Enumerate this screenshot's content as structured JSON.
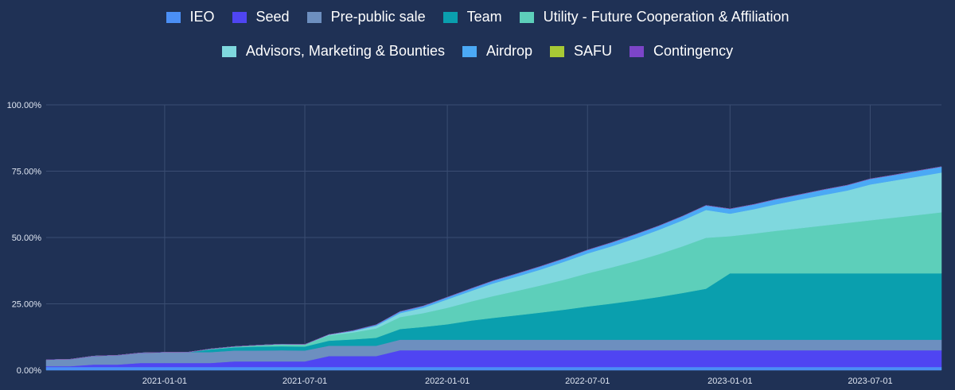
{
  "chart_data": {
    "type": "area",
    "stacked": true,
    "title": "",
    "xlabel": "",
    "ylabel": "",
    "ylim": [
      0,
      100
    ],
    "x_ticks": [
      "2021-01-01",
      "2021-07-01",
      "2022-01-01",
      "2022-07-01",
      "2023-01-01",
      "2023-07-01"
    ],
    "y_ticks": [
      "0.00%",
      "25.00%",
      "50.00%",
      "75.00%",
      "100.00%"
    ],
    "legend_position": "top",
    "x": [
      "2020-08-01",
      "2020-09-01",
      "2020-10-01",
      "2020-11-01",
      "2020-12-01",
      "2021-01-01",
      "2021-02-01",
      "2021-03-01",
      "2021-04-01",
      "2021-05-01",
      "2021-06-01",
      "2021-07-01",
      "2021-08-01",
      "2021-09-01",
      "2021-10-01",
      "2021-11-01",
      "2021-12-01",
      "2022-01-01",
      "2022-02-01",
      "2022-03-01",
      "2022-04-01",
      "2022-05-01",
      "2022-06-01",
      "2022-07-01",
      "2022-08-01",
      "2022-09-01",
      "2022-10-01",
      "2022-11-01",
      "2022-12-01",
      "2023-01-01",
      "2023-02-01",
      "2023-03-01",
      "2023-04-01",
      "2023-05-01",
      "2023-06-01",
      "2023-07-01",
      "2023-08-01",
      "2023-09-01",
      "2023-10-01"
    ],
    "series": [
      {
        "name": "IEO",
        "color": "#4b8ff5",
        "values": [
          1.2,
          1.2,
          1.2,
          1.2,
          1.2,
          1.2,
          1.2,
          1.2,
          1.2,
          1.2,
          1.2,
          1.2,
          1.2,
          1.2,
          1.2,
          1.2,
          1.2,
          1.2,
          1.2,
          1.2,
          1.2,
          1.2,
          1.2,
          1.2,
          1.2,
          1.2,
          1.2,
          1.2,
          1.2,
          1.2,
          1.2,
          1.2,
          1.2,
          1.2,
          1.2,
          1.2,
          1.2,
          1.2,
          1.2
        ]
      },
      {
        "name": "Seed",
        "color": "#4f45f2",
        "values": [
          0.3,
          0.3,
          0.9,
          0.9,
          1.5,
          1.5,
          1.5,
          1.5,
          2.1,
          2.1,
          2.1,
          2.1,
          4.1,
          4.1,
          4.1,
          6.3,
          6.3,
          6.3,
          6.3,
          6.3,
          6.3,
          6.3,
          6.3,
          6.3,
          6.3,
          6.3,
          6.3,
          6.3,
          6.3,
          6.3,
          6.3,
          6.3,
          6.3,
          6.3,
          6.3,
          6.3,
          6.3,
          6.3,
          6.3
        ]
      },
      {
        "name": "Pre-public sale",
        "color": "#6d8fbf",
        "values": [
          2.4,
          2.6,
          3.2,
          3.5,
          3.8,
          4.0,
          4.1,
          4.1,
          4.1,
          4.1,
          4.2,
          4.1,
          3.9,
          3.9,
          3.9,
          4.0,
          4.0,
          4.0,
          4.0,
          4.0,
          4.0,
          4.0,
          4.0,
          4.0,
          4.0,
          4.0,
          4.0,
          4.0,
          4.0,
          4.0,
          4.0,
          4.0,
          4.0,
          4.0,
          4.0,
          4.0,
          4.0,
          4.0,
          4.0
        ]
      },
      {
        "name": "Team",
        "color": "#0a9fae",
        "values": [
          0,
          0,
          0,
          0,
          0,
          0,
          0,
          1.0,
          1.2,
          1.5,
          1.5,
          1.5,
          1.9,
          2.4,
          3.0,
          4.0,
          4.8,
          5.8,
          7.2,
          8.2,
          9.2,
          10.2,
          11.3,
          12.5,
          13.6,
          14.8,
          16.1,
          17.6,
          19.2,
          25.0,
          25.0,
          25.0,
          25.0,
          25.0,
          25.0,
          25.0,
          25.0,
          25.0,
          25.0
        ]
      },
      {
        "name": "Utility - Future Cooperation & Affiliation",
        "color": "#5dcfba",
        "values": [
          0,
          0,
          0,
          0,
          0,
          0,
          0,
          0.2,
          0.3,
          0.5,
          0.8,
          0.8,
          2.0,
          2.6,
          3.5,
          4.5,
          5.2,
          6.2,
          7.2,
          8.2,
          9.2,
          10.2,
          11.3,
          12.5,
          13.6,
          14.8,
          16.1,
          17.6,
          19.2,
          14.0,
          15.0,
          16.0,
          17.0,
          18.0,
          19.0,
          20.0,
          21.0,
          22.0,
          23.0
        ]
      },
      {
        "name": "Advisors, Marketing & Bounties",
        "color": "#7fd8de",
        "values": [
          0,
          0,
          0,
          0,
          0,
          0,
          0,
          0,
          0,
          0,
          0,
          0,
          0.3,
          0.5,
          1.0,
          1.5,
          2.0,
          3.2,
          4.0,
          4.8,
          5.4,
          6.0,
          6.8,
          7.5,
          8.0,
          8.6,
          9.2,
          9.8,
          10.5,
          8.5,
          9.2,
          10.0,
          10.8,
          11.5,
          12.2,
          13.5,
          14.0,
          14.5,
          15.0
        ]
      },
      {
        "name": "Airdrop",
        "color": "#4ba9f5",
        "values": [
          0,
          0,
          0,
          0,
          0,
          0,
          0,
          0,
          0,
          0,
          0,
          0,
          0,
          0.2,
          0.4,
          0.6,
          0.7,
          0.8,
          0.9,
          1.0,
          1.1,
          1.2,
          1.2,
          1.3,
          1.4,
          1.5,
          1.5,
          1.6,
          1.7,
          1.8,
          1.8,
          1.9,
          1.9,
          2.0,
          2.0,
          2.1,
          2.1,
          2.2,
          2.2
        ]
      },
      {
        "name": "SAFU",
        "color": "#a7c935",
        "values": [
          0,
          0,
          0,
          0,
          0,
          0,
          0,
          0,
          0,
          0,
          0,
          0,
          0,
          0,
          0,
          0,
          0,
          0,
          0,
          0,
          0,
          0,
          0,
          0,
          0,
          0,
          0,
          0,
          0,
          0,
          0,
          0,
          0,
          0,
          0,
          0,
          0,
          0,
          0
        ]
      },
      {
        "name": "Contingency",
        "color": "#7c45c8",
        "values": [
          0,
          0,
          0,
          0,
          0,
          0,
          0,
          0,
          0,
          0,
          0,
          0,
          0,
          0,
          0,
          0,
          0,
          0,
          0,
          0,
          0,
          0,
          0,
          0,
          0,
          0,
          0,
          0,
          0,
          0,
          0,
          0,
          0,
          0,
          0,
          0,
          0,
          0,
          0
        ]
      }
    ]
  }
}
